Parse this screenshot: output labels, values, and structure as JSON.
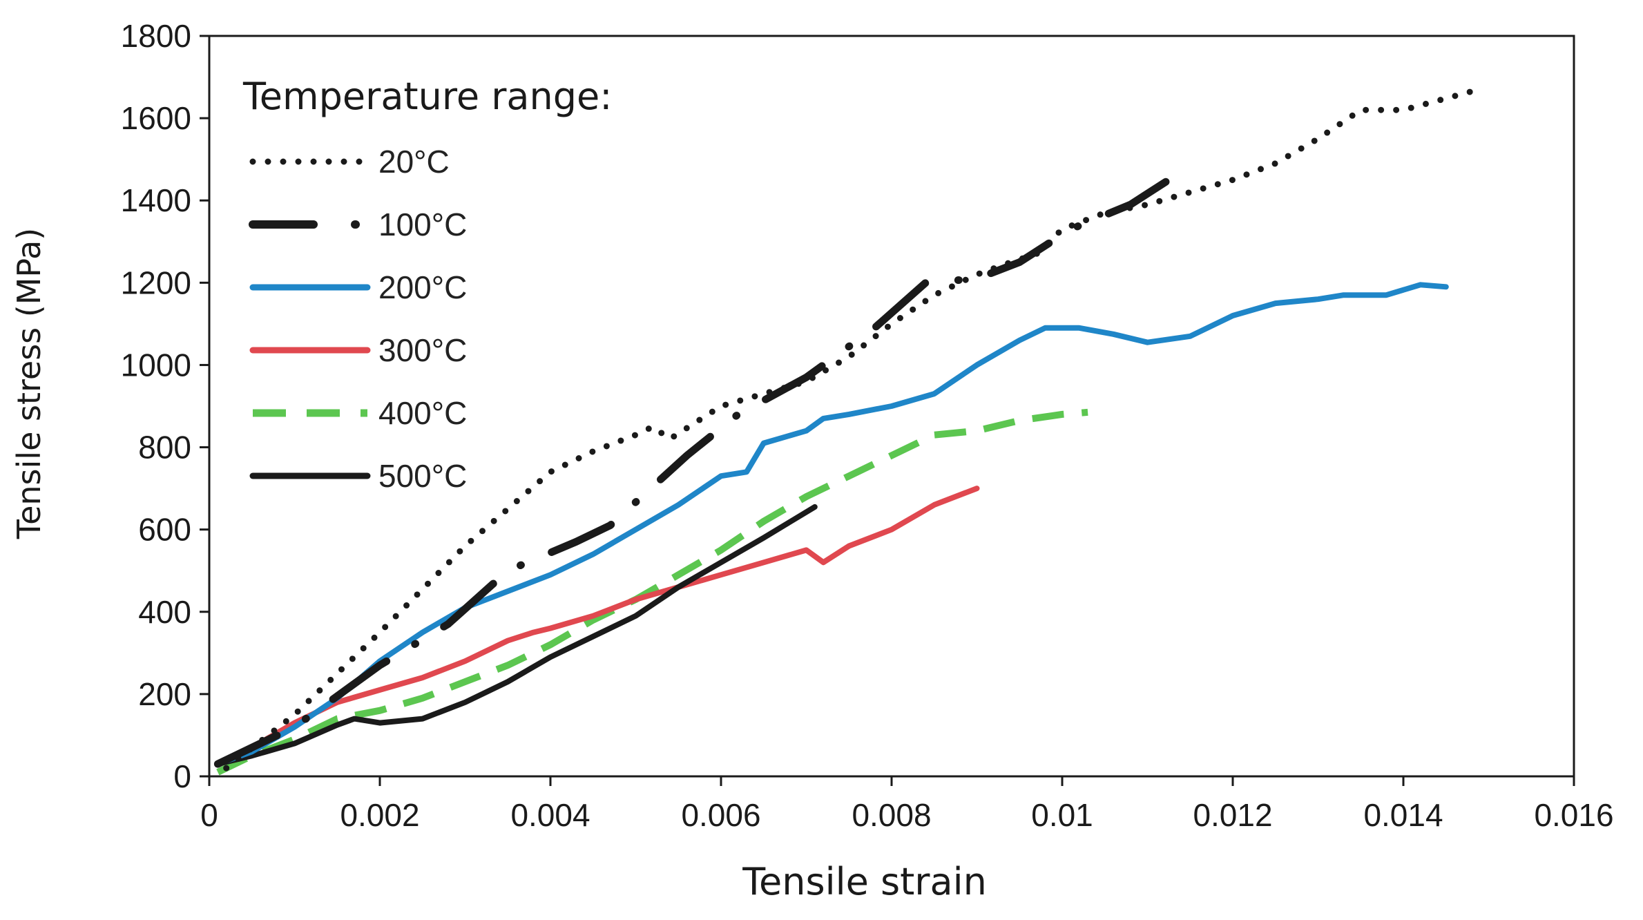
{
  "chart_data": {
    "type": "line",
    "title": "",
    "xlabel": "Tensile strain",
    "ylabel": "Tensile stress (MPa)",
    "xlim": [
      0,
      0.016
    ],
    "ylim": [
      0,
      1800
    ],
    "x_ticks": [
      0,
      0.002,
      0.004,
      0.006,
      0.008,
      0.01,
      0.012,
      0.014,
      0.016
    ],
    "x_tick_labels": [
      "0",
      "0.002",
      "0.004",
      "0.006",
      "0.008",
      "0.01",
      "0.012",
      "0.014",
      "0.016"
    ],
    "y_ticks": [
      0,
      200,
      400,
      600,
      800,
      1000,
      1200,
      1400,
      1600,
      1800
    ],
    "y_tick_labels": [
      "0",
      "200",
      "400",
      "600",
      "800",
      "1000",
      "1200",
      "1400",
      "1600",
      "1800"
    ],
    "grid": false,
    "legend": {
      "title": "Temperature range:",
      "placement": "top-left"
    },
    "series": [
      {
        "name": "20°C",
        "style": "dotted",
        "color": "#1a1a1a",
        "points": [
          [
            0.0002,
            20
          ],
          [
            0.001,
            150
          ],
          [
            0.002,
            350
          ],
          [
            0.003,
            560
          ],
          [
            0.004,
            740
          ],
          [
            0.0045,
            790
          ],
          [
            0.005,
            830
          ],
          [
            0.0052,
            850
          ],
          [
            0.0054,
            820
          ],
          [
            0.006,
            900
          ],
          [
            0.0065,
            930
          ],
          [
            0.007,
            960
          ],
          [
            0.0075,
            1020
          ],
          [
            0.008,
            1100
          ],
          [
            0.0085,
            1170
          ],
          [
            0.009,
            1220
          ],
          [
            0.0094,
            1250
          ],
          [
            0.0097,
            1270
          ],
          [
            0.01,
            1330
          ],
          [
            0.0105,
            1370
          ],
          [
            0.011,
            1390
          ],
          [
            0.0115,
            1420
          ],
          [
            0.012,
            1450
          ],
          [
            0.0125,
            1490
          ],
          [
            0.013,
            1550
          ],
          [
            0.0135,
            1620
          ],
          [
            0.014,
            1620
          ],
          [
            0.0148,
            1665
          ]
        ]
      },
      {
        "name": "100°C",
        "style": "dash-dot",
        "color": "#1a1a1a",
        "points": [
          [
            0.0001,
            30
          ],
          [
            0.001,
            120
          ],
          [
            0.002,
            270
          ],
          [
            0.0028,
            370
          ],
          [
            0.0035,
            500
          ],
          [
            0.0043,
            570
          ],
          [
            0.0047,
            610
          ],
          [
            0.0056,
            780
          ],
          [
            0.0062,
            880
          ],
          [
            0.007,
            970
          ],
          [
            0.0078,
            1090
          ],
          [
            0.0084,
            1200
          ],
          [
            0.009,
            1210
          ],
          [
            0.0095,
            1250
          ],
          [
            0.0101,
            1330
          ],
          [
            0.0108,
            1390
          ],
          [
            0.0114,
            1470
          ]
        ]
      },
      {
        "name": "200°C",
        "style": "solid",
        "color": "#1f86c8",
        "points": [
          [
            0.0001,
            30
          ],
          [
            0.0005,
            60
          ],
          [
            0.001,
            120
          ],
          [
            0.0015,
            190
          ],
          [
            0.002,
            280
          ],
          [
            0.0025,
            350
          ],
          [
            0.003,
            410
          ],
          [
            0.0035,
            450
          ],
          [
            0.004,
            490
          ],
          [
            0.0045,
            540
          ],
          [
            0.005,
            600
          ],
          [
            0.0055,
            660
          ],
          [
            0.006,
            730
          ],
          [
            0.0063,
            740
          ],
          [
            0.0065,
            810
          ],
          [
            0.007,
            840
          ],
          [
            0.0072,
            870
          ],
          [
            0.0075,
            880
          ],
          [
            0.008,
            900
          ],
          [
            0.0085,
            930
          ],
          [
            0.009,
            1000
          ],
          [
            0.0095,
            1060
          ],
          [
            0.0098,
            1090
          ],
          [
            0.0102,
            1090
          ],
          [
            0.0106,
            1075
          ],
          [
            0.011,
            1055
          ],
          [
            0.0115,
            1070
          ],
          [
            0.012,
            1120
          ],
          [
            0.0125,
            1150
          ],
          [
            0.013,
            1160
          ],
          [
            0.0133,
            1170
          ],
          [
            0.0138,
            1170
          ],
          [
            0.0142,
            1195
          ],
          [
            0.0145,
            1190
          ]
        ]
      },
      {
        "name": "300°C",
        "style": "solid",
        "color": "#e0484f",
        "points": [
          [
            0.0001,
            30
          ],
          [
            0.0005,
            70
          ],
          [
            0.001,
            130
          ],
          [
            0.0015,
            180
          ],
          [
            0.002,
            210
          ],
          [
            0.0025,
            240
          ],
          [
            0.003,
            280
          ],
          [
            0.0035,
            330
          ],
          [
            0.0038,
            350
          ],
          [
            0.004,
            360
          ],
          [
            0.0045,
            390
          ],
          [
            0.005,
            430
          ],
          [
            0.0055,
            460
          ],
          [
            0.006,
            490
          ],
          [
            0.0065,
            520
          ],
          [
            0.007,
            550
          ],
          [
            0.0072,
            520
          ],
          [
            0.0075,
            560
          ],
          [
            0.008,
            600
          ],
          [
            0.0085,
            660
          ],
          [
            0.009,
            700
          ]
        ]
      },
      {
        "name": "400°C",
        "style": "dashed",
        "color": "#5cc650",
        "points": [
          [
            0.0001,
            10
          ],
          [
            0.0005,
            50
          ],
          [
            0.001,
            90
          ],
          [
            0.0015,
            140
          ],
          [
            0.002,
            160
          ],
          [
            0.0025,
            190
          ],
          [
            0.003,
            230
          ],
          [
            0.0035,
            270
          ],
          [
            0.004,
            320
          ],
          [
            0.0045,
            380
          ],
          [
            0.005,
            430
          ],
          [
            0.0055,
            490
          ],
          [
            0.006,
            550
          ],
          [
            0.0065,
            620
          ],
          [
            0.007,
            680
          ],
          [
            0.0075,
            730
          ],
          [
            0.008,
            780
          ],
          [
            0.0085,
            830
          ],
          [
            0.009,
            840
          ],
          [
            0.0095,
            865
          ],
          [
            0.01,
            880
          ],
          [
            0.0103,
            885
          ]
        ]
      },
      {
        "name": "500°C",
        "style": "solid",
        "color": "#1a1a1a",
        "points": [
          [
            0.0001,
            30
          ],
          [
            0.0005,
            50
          ],
          [
            0.001,
            80
          ],
          [
            0.0015,
            125
          ],
          [
            0.0017,
            140
          ],
          [
            0.002,
            130
          ],
          [
            0.0025,
            140
          ],
          [
            0.003,
            180
          ],
          [
            0.0035,
            230
          ],
          [
            0.004,
            290
          ],
          [
            0.0045,
            340
          ],
          [
            0.005,
            390
          ],
          [
            0.0055,
            460
          ],
          [
            0.006,
            520
          ],
          [
            0.0065,
            580
          ],
          [
            0.0071,
            655
          ]
        ]
      }
    ]
  }
}
